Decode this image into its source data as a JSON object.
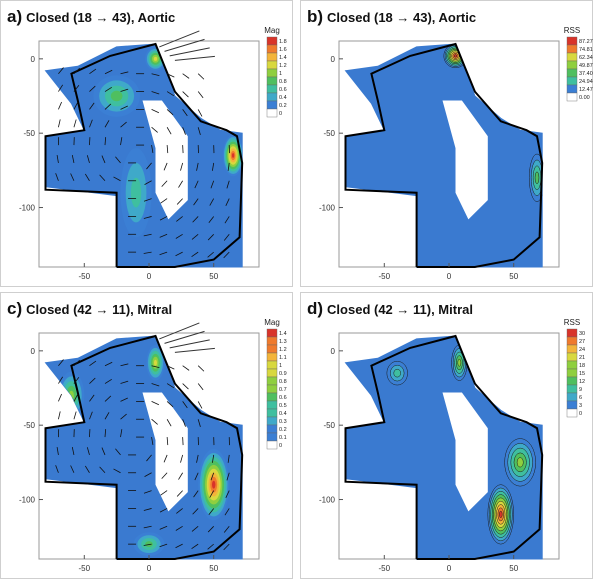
{
  "chart_data": [
    {
      "type": "heatmap",
      "panel_label": "a)",
      "title": "Closed (18 → 43), Aortic",
      "colorbar_title": "Mag",
      "colorbar_ticks": [
        "1.8",
        "1.6",
        "1.4",
        "1.2",
        "1",
        "0.8",
        "0.6",
        "0.4",
        "0.2",
        "0"
      ],
      "xticks": [
        "-50",
        "0",
        "50"
      ],
      "yticks": [
        "0",
        "-50",
        "-100"
      ],
      "xlim": [
        -85,
        85
      ],
      "ylim": [
        -140,
        12
      ],
      "vectors": true,
      "hotspots": [
        {
          "x": 65,
          "y": -65,
          "level": 1.0,
          "rx": 8,
          "ry": 14
        },
        {
          "x": 5,
          "y": 0,
          "level": 0.7,
          "rx": 8,
          "ry": 8
        },
        {
          "x": -25,
          "y": -25,
          "level": 0.45,
          "rx": 18,
          "ry": 14
        },
        {
          "x": -10,
          "y": -90,
          "level": 0.35,
          "rx": 12,
          "ry": 30
        }
      ]
    },
    {
      "type": "heatmap",
      "panel_label": "b)",
      "title": "Closed (18 → 43), Aortic",
      "colorbar_title": "RSS",
      "colorbar_ticks": [
        "87.27",
        "74.81",
        "62.34",
        "49.87",
        "37.40",
        "24.94",
        "12.47",
        "0.00"
      ],
      "xticks": [
        "-50",
        "0",
        "50"
      ],
      "yticks": [
        "0",
        "-50",
        "-100"
      ],
      "xlim": [
        -85,
        85
      ],
      "ylim": [
        -140,
        12
      ],
      "vectors": false,
      "hotspots": [
        {
          "x": 5,
          "y": 2,
          "level": 1.0,
          "rx": 9,
          "ry": 8
        },
        {
          "x": 68,
          "y": -80,
          "level": 0.45,
          "rx": 6,
          "ry": 16
        }
      ]
    },
    {
      "type": "heatmap",
      "panel_label": "c)",
      "title": "Closed (42 → 11), Mitral",
      "colorbar_title": "Mag",
      "colorbar_ticks": [
        "1.4",
        "1.3",
        "1.2",
        "1.1",
        "1",
        "0.9",
        "0.8",
        "0.7",
        "0.6",
        "0.5",
        "0.4",
        "0.3",
        "0.2",
        "0.1",
        "0"
      ],
      "xticks": [
        "-50",
        "0",
        "50"
      ],
      "yticks": [
        "0",
        "-50",
        "-100"
      ],
      "xlim": [
        -85,
        85
      ],
      "ylim": [
        -140,
        12
      ],
      "vectors": true,
      "hotspots": [
        {
          "x": 50,
          "y": -90,
          "level": 1.0,
          "rx": 12,
          "ry": 24
        },
        {
          "x": 5,
          "y": -8,
          "level": 0.7,
          "rx": 7,
          "ry": 12
        },
        {
          "x": -60,
          "y": -30,
          "level": 0.5,
          "rx": 10,
          "ry": 16
        },
        {
          "x": 0,
          "y": -130,
          "level": 0.45,
          "rx": 12,
          "ry": 8
        }
      ]
    },
    {
      "type": "heatmap",
      "panel_label": "d)",
      "title": "Closed (42 → 11), Mitral",
      "colorbar_title": "RSS",
      "colorbar_ticks": [
        "30",
        "27",
        "24",
        "21",
        "18",
        "15",
        "12",
        "9",
        "6",
        "3",
        "0"
      ],
      "xticks": [
        "-50",
        "0",
        "50"
      ],
      "yticks": [
        "0",
        "-50",
        "-100"
      ],
      "xlim": [
        -85,
        85
      ],
      "ylim": [
        -140,
        12
      ],
      "vectors": false,
      "hotspots": [
        {
          "x": 40,
          "y": -110,
          "level": 1.0,
          "rx": 10,
          "ry": 20
        },
        {
          "x": 55,
          "y": -75,
          "level": 0.5,
          "rx": 12,
          "ry": 16
        },
        {
          "x": 8,
          "y": -8,
          "level": 0.55,
          "rx": 6,
          "ry": 12
        },
        {
          "x": -40,
          "y": -15,
          "level": 0.35,
          "rx": 8,
          "ry": 8
        }
      ]
    }
  ]
}
